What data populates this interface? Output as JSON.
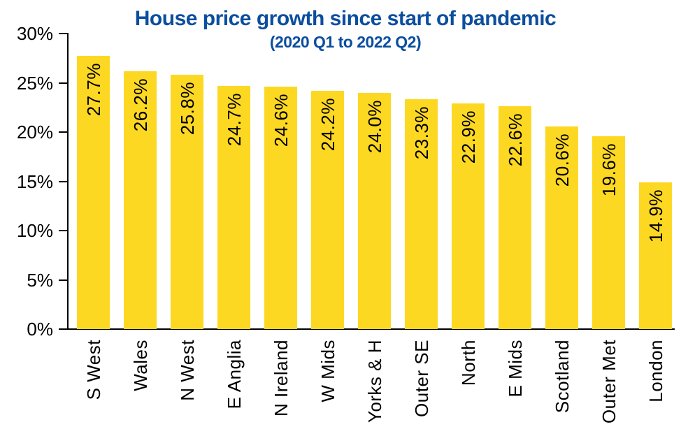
{
  "chart_data": {
    "type": "bar",
    "title": "House price growth since start of pandemic",
    "subtitle": "(2020 Q1 to 2022 Q2)",
    "categories": [
      "S West",
      "Wales",
      "N West",
      "E Anglia",
      "N Ireland",
      "W Mids",
      "Yorks & H",
      "Outer SE",
      "North",
      "E Mids",
      "Scotland",
      "Outer Met",
      "London"
    ],
    "values": [
      27.7,
      26.2,
      25.8,
      24.7,
      24.6,
      24.2,
      24.0,
      23.3,
      22.9,
      22.6,
      20.6,
      19.6,
      14.9
    ],
    "value_labels": [
      "27.7%",
      "26.2%",
      "25.8%",
      "24.7%",
      "24.6%",
      "24.2%",
      "24.0%",
      "23.3%",
      "22.9%",
      "22.6%",
      "20.6%",
      "19.6%",
      "14.9%"
    ],
    "xlabel": "",
    "ylabel": "",
    "ylim": [
      0,
      30
    ],
    "yticks": [
      {
        "value": 0,
        "label": "0%"
      },
      {
        "value": 5,
        "label": "5%"
      },
      {
        "value": 10,
        "label": "10%"
      },
      {
        "value": 15,
        "label": "15%"
      },
      {
        "value": 20,
        "label": "20%"
      },
      {
        "value": 25,
        "label": "25%"
      },
      {
        "value": 30,
        "label": "30%"
      }
    ],
    "grid": false,
    "legend": "none",
    "colors": {
      "bar": "#FDD822",
      "title": "#0B4E9E",
      "axis": "#000000",
      "label_text": "#000000"
    }
  }
}
